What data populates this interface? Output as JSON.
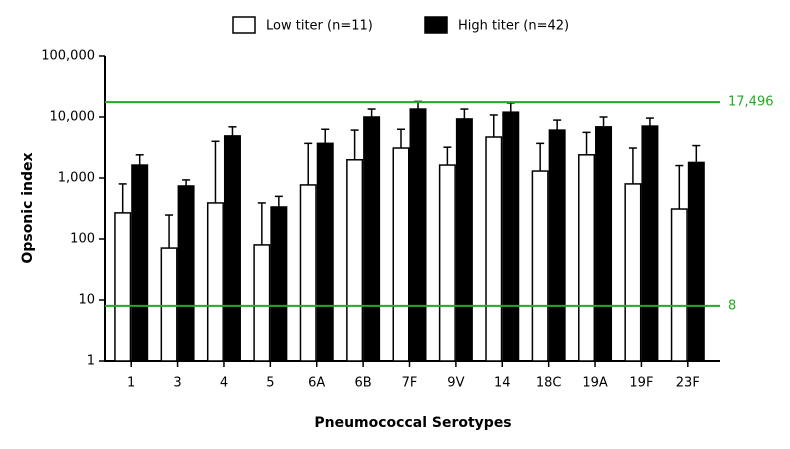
{
  "chart_data": {
    "type": "bar",
    "x_label": "Pneumococcal Serotypes",
    "y_label": "Opsonic index",
    "log_scale": true,
    "categories": [
      "1",
      "3",
      "4",
      "5",
      "6A",
      "6B",
      "7F",
      "9V",
      "14",
      "18C",
      "19A",
      "19F",
      "23F"
    ],
    "series": [
      {
        "name": "Low titer (n=11)",
        "color": "#ffffff",
        "values": [
          268,
          71,
          390,
          80,
          770,
          1990,
          3100,
          1630,
          4700,
          1300,
          2400,
          800,
          310
        ],
        "errors": [
          532,
          176,
          3610,
          310,
          2930,
          4110,
          3200,
          1570,
          6100,
          2400,
          3200,
          2300,
          1290
        ]
      },
      {
        "name": "High titer (n=42)",
        "color": "#000000",
        "values": [
          1630,
          740,
          4900,
          335,
          3700,
          10000,
          13500,
          9300,
          12000,
          6100,
          6900,
          7100,
          1800
        ],
        "errors": [
          770,
          190,
          2000,
          165,
          2600,
          3500,
          4500,
          4200,
          5000,
          2800,
          3100,
          2500,
          1600
        ]
      }
    ],
    "ylim": [
      1,
      100000
    ],
    "yticks": [
      1,
      10,
      100,
      {
        "value": 1000,
        "label": "1,000"
      },
      {
        "value": 10000,
        "label": "10,000"
      },
      {
        "value": 100000,
        "label": "100,000"
      }
    ],
    "reference_lines": [
      {
        "value": 17496,
        "label": "17,496"
      },
      {
        "value": 8,
        "label": "8"
      }
    ],
    "reference_color": "#22aa22",
    "legend": "top"
  }
}
